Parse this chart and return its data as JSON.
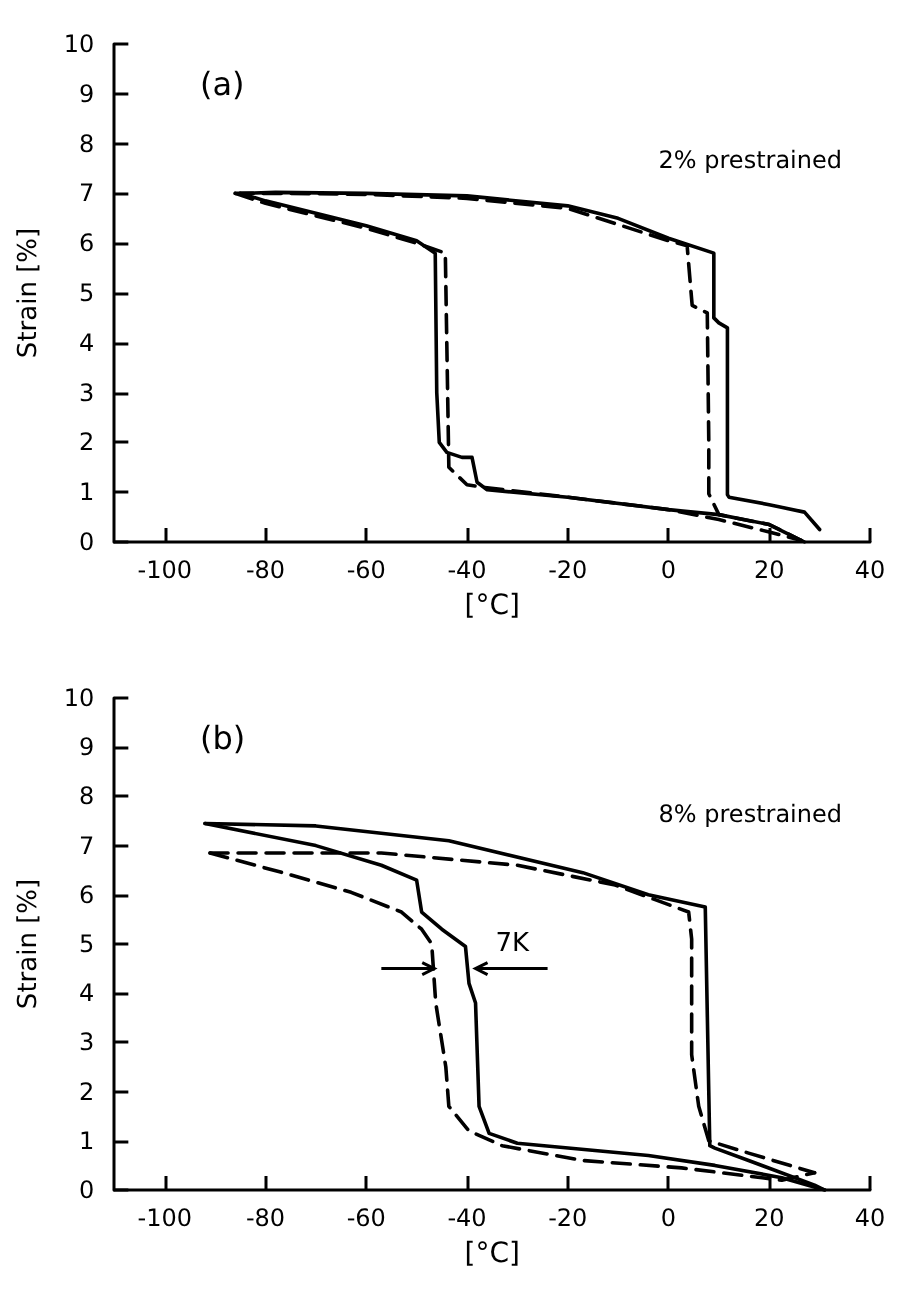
{
  "chart_data": [
    {
      "type": "line",
      "title": "(a)",
      "xlabel": "[°C]",
      "ylabel": "Strain [%]",
      "annotations": [
        "2% prestrained"
      ],
      "xlim": [
        -110,
        40
      ],
      "xticks": [
        -100,
        -80,
        -60,
        -40,
        -20,
        0,
        20,
        40
      ],
      "ylim": [
        0,
        10
      ],
      "yticks": [
        0,
        1,
        2,
        3,
        4,
        5,
        6,
        7,
        8,
        9,
        10
      ],
      "grid": false,
      "marker": "none",
      "series": [
        {
          "color": "#000000",
          "line_style": "solid",
          "x": [
            -85,
            -78,
            -60,
            -40,
            -20,
            -10,
            0,
            9,
            9,
            10,
            11.7,
            11.7,
            12,
            20,
            27,
            30
          ],
          "values": [
            7,
            7.02,
            7,
            6.95,
            6.75,
            6.5,
            6.1,
            5.8,
            4.5,
            4.4,
            4.3,
            0.95,
            0.9,
            0.75,
            0.6,
            0.25
          ]
        },
        {
          "color": "#000000",
          "line_style": "solid",
          "x": [
            -85,
            -80,
            -70,
            -60,
            -50,
            -46.3,
            -46,
            -45.5,
            -44,
            -41,
            -39,
            -38,
            -36,
            -20,
            0,
            10,
            20,
            25,
            27
          ],
          "values": [
            7,
            6.85,
            6.6,
            6.35,
            6.05,
            5.8,
            3,
            2,
            1.8,
            1.7,
            1.7,
            1.2,
            1.05,
            0.9,
            0.65,
            0.55,
            0.35,
            0.1,
            0
          ]
        },
        {
          "color": "#000000",
          "line_style": "dashed",
          "x": [
            -86,
            -76,
            -60,
            -40,
            -20,
            0,
            3.7,
            4.7,
            7.7,
            8,
            8,
            10,
            20,
            26.4
          ],
          "values": [
            7,
            7,
            6.98,
            6.9,
            6.7,
            6.05,
            5.95,
            4.75,
            4.6,
            2,
            0.97,
            0.55,
            0.35,
            0.03
          ]
        },
        {
          "color": "#000000",
          "line_style": "dashed",
          "x": [
            -86,
            -80,
            -70,
            -60,
            -50,
            -44.3,
            -43.6,
            -40,
            -37,
            -20,
            0,
            10,
            20,
            26.4
          ],
          "values": [
            7,
            6.8,
            6.55,
            6.3,
            6.0,
            5.8,
            1.5,
            1.15,
            1.1,
            0.9,
            0.65,
            0.45,
            0.2,
            0.03
          ]
        }
      ]
    },
    {
      "type": "line",
      "title": "(b)",
      "xlabel": "[°C]",
      "ylabel": "Strain [%]",
      "annotations": [
        "8% prestrained",
        "7K"
      ],
      "xlim": [
        -110,
        40
      ],
      "xticks": [
        -100,
        -80,
        -60,
        -40,
        -20,
        0,
        20,
        40
      ],
      "ylim": [
        0,
        10
      ],
      "yticks": [
        0,
        1,
        2,
        3,
        4,
        5,
        6,
        7,
        8,
        9,
        10
      ],
      "grid": false,
      "marker": "none",
      "series": [
        {
          "color": "#000000",
          "line_style": "solid",
          "x": [
            -92,
            -70,
            -43.6,
            -17,
            -4,
            7.3,
            8.2,
            9.2,
            15.9,
            29,
            31
          ],
          "values": [
            7.45,
            7.4,
            7.1,
            6.45,
            6.0,
            5.75,
            0.9,
            0.85,
            0.6,
            0.1,
            0
          ]
        },
        {
          "color": "#000000",
          "line_style": "solid",
          "x": [
            -92,
            -70,
            -57,
            -50,
            -49,
            -45,
            -40.3,
            -39.6,
            -38.3,
            -37.6,
            -35.6,
            -30,
            -4,
            9.2,
            22.5,
            31
          ],
          "values": [
            7.45,
            7.0,
            6.6,
            6.3,
            5.65,
            5.3,
            4.95,
            4.2,
            3.8,
            1.7,
            1.15,
            0.95,
            0.7,
            0.5,
            0.25,
            0
          ]
        },
        {
          "color": "#000000",
          "line_style": "dashed",
          "x": [
            -91,
            -57,
            -30,
            -10.6,
            4,
            4.6,
            4.6,
            6,
            8,
            15.9,
            29
          ],
          "values": [
            6.85,
            6.85,
            6.6,
            6.2,
            5.65,
            5.1,
            2.75,
            1.7,
            1.0,
            0.75,
            0.35
          ]
        },
        {
          "color": "#000000",
          "line_style": "dashed",
          "x": [
            -91,
            -76.6,
            -63,
            -53,
            -49,
            -47,
            -46.2,
            -44.2,
            -43.6,
            -39.6,
            -33,
            -17,
            2.6,
            22.5,
            29
          ],
          "values": [
            6.85,
            6.45,
            6.05,
            5.65,
            5.3,
            5.0,
            3.8,
            2.5,
            1.7,
            1.2,
            0.9,
            0.6,
            0.45,
            0.2,
            0.35
          ]
        }
      ]
    }
  ]
}
